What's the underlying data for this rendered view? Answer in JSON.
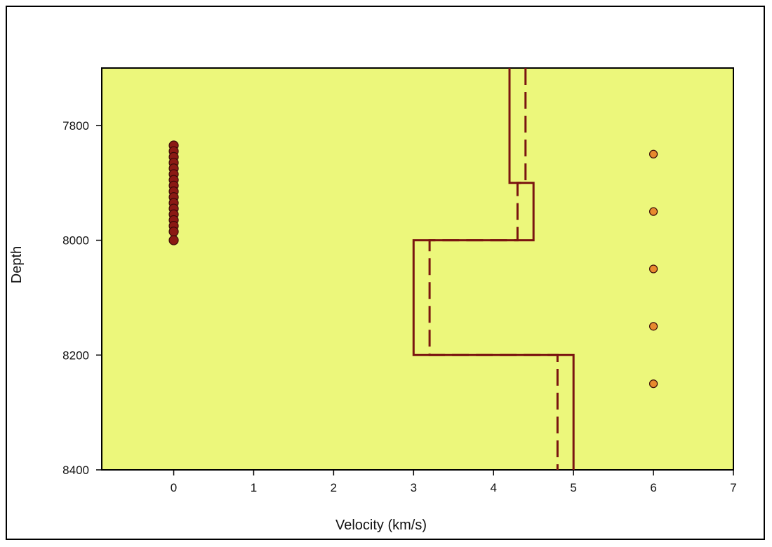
{
  "chart_data": {
    "type": "line",
    "xlabel": "Velocity (km/s)",
    "ylabel": "Depth",
    "xlim": [
      -0.9,
      7
    ],
    "ylim": [
      7700,
      8400
    ],
    "y_inverted": true,
    "x_ticks": [
      0,
      1,
      2,
      3,
      4,
      5,
      6,
      7
    ],
    "y_ticks": [
      7800,
      8000,
      8200,
      8400
    ],
    "grid": false,
    "colors": {
      "plot_background": "#ecf77b",
      "line": "#7a1410",
      "marker_left": "#8b1a14",
      "marker_right": "#e88a2e"
    },
    "series": [
      {
        "style": "solid",
        "step_profile": [
          {
            "v": 4.2,
            "top": 7700,
            "bottom": 7900
          },
          {
            "v": 4.5,
            "top": 7900,
            "bottom": 8000
          },
          {
            "v": 3.0,
            "top": 8000,
            "bottom": 8200
          },
          {
            "v": 5.0,
            "top": 8200,
            "bottom": 8400
          }
        ]
      },
      {
        "style": "dashed",
        "step_profile": [
          {
            "v": 4.4,
            "top": 7700,
            "bottom": 7900
          },
          {
            "v": 4.3,
            "top": 7900,
            "bottom": 8000
          },
          {
            "v": 3.2,
            "top": 8000,
            "bottom": 8200
          },
          {
            "v": 4.8,
            "top": 8200,
            "bottom": 8400
          }
        ]
      },
      {
        "style": "markers",
        "x": [
          0,
          0,
          0,
          0,
          0,
          0,
          0,
          0,
          0,
          0,
          0,
          0,
          0,
          0,
          0,
          0,
          0
        ],
        "y": [
          7835,
          7845,
          7855,
          7865,
          7875,
          7885,
          7895,
          7905,
          7915,
          7925,
          7935,
          7945,
          7955,
          7965,
          7975,
          7985,
          8000
        ]
      },
      {
        "style": "markers",
        "x": [
          6,
          6,
          6,
          6,
          6
        ],
        "y": [
          7850,
          7950,
          8050,
          8150,
          8250
        ]
      }
    ]
  }
}
